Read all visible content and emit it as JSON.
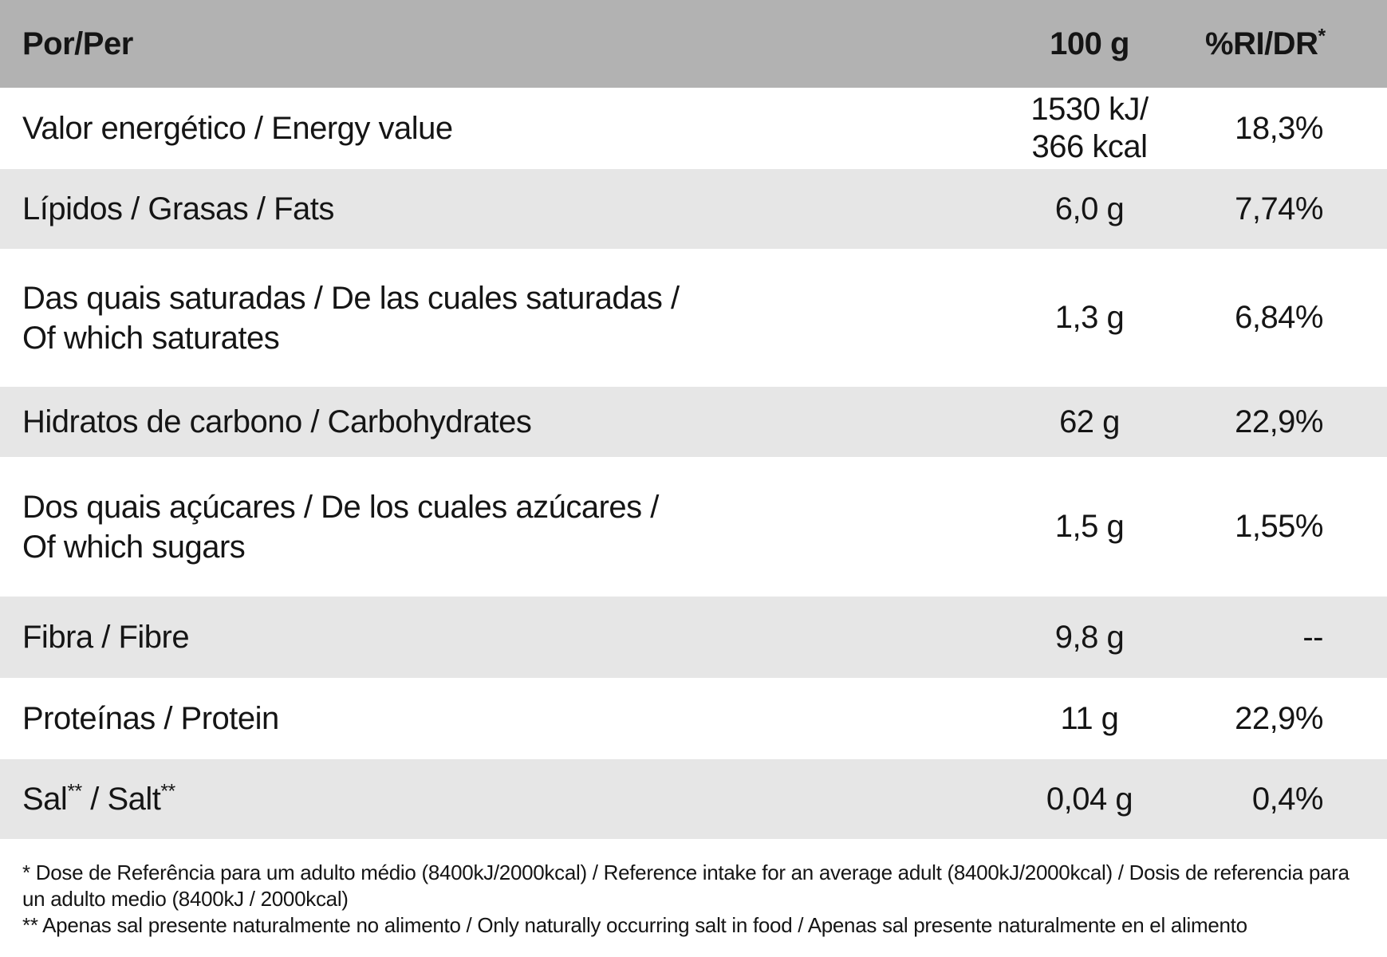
{
  "colors": {
    "header_bg": "#b2b2b2",
    "row_shade_bg": "#e6e6e6",
    "text": "#151515"
  },
  "table": {
    "header": {
      "per": "Por/Per",
      "amount": "100 g",
      "ri_parts": [
        "%RI/DR",
        "*"
      ]
    },
    "rows": [
      {
        "name": "energy",
        "label_lines": [
          "Valor energético / Energy value"
        ],
        "value_lines": [
          "1530 kJ/",
          "366 kcal"
        ],
        "ri": "18,3%"
      },
      {
        "name": "fats",
        "label_lines": [
          "Lípidos / Grasas / Fats"
        ],
        "value_lines": [
          "6,0 g"
        ],
        "ri": "7,74%"
      },
      {
        "name": "saturates",
        "label_lines": [
          "Das quais saturadas / De las cuales saturadas /",
          "Of which saturates"
        ],
        "value_lines": [
          "1,3 g"
        ],
        "ri": "6,84%"
      },
      {
        "name": "carbohydrates",
        "label_lines": [
          "Hidratos de carbono / Carbohydrates"
        ],
        "value_lines": [
          "62 g"
        ],
        "ri": "22,9%"
      },
      {
        "name": "sugars",
        "label_lines": [
          "Dos quais açúcares / De los cuales azúcares /",
          "Of which sugars"
        ],
        "value_lines": [
          "1,5 g"
        ],
        "ri": "1,55%"
      },
      {
        "name": "fibre",
        "label_lines": [
          "Fibra / Fibre"
        ],
        "value_lines": [
          "9,8 g"
        ],
        "ri": "--"
      },
      {
        "name": "protein",
        "label_lines": [
          "Proteínas / Protein"
        ],
        "value_lines": [
          "11 g"
        ],
        "ri": "22,9%"
      },
      {
        "name": "salt",
        "label_parts": [
          "Sal",
          "**",
          " / Salt",
          "**"
        ],
        "value_lines": [
          "0,04 g"
        ],
        "ri": "0,4%"
      }
    ]
  },
  "footnotes": [
    "* Dose de Referência para um adulto médio (8400kJ/2000kcal) / Reference intake for an average adult (8400kJ/2000kcal) / Dosis de referencia para un adulto medio (8400kJ / 2000kcal)",
    "** Apenas sal presente naturalmente no alimento / Only naturally occurring salt in food / Apenas sal presente naturalmente en el alimento"
  ]
}
